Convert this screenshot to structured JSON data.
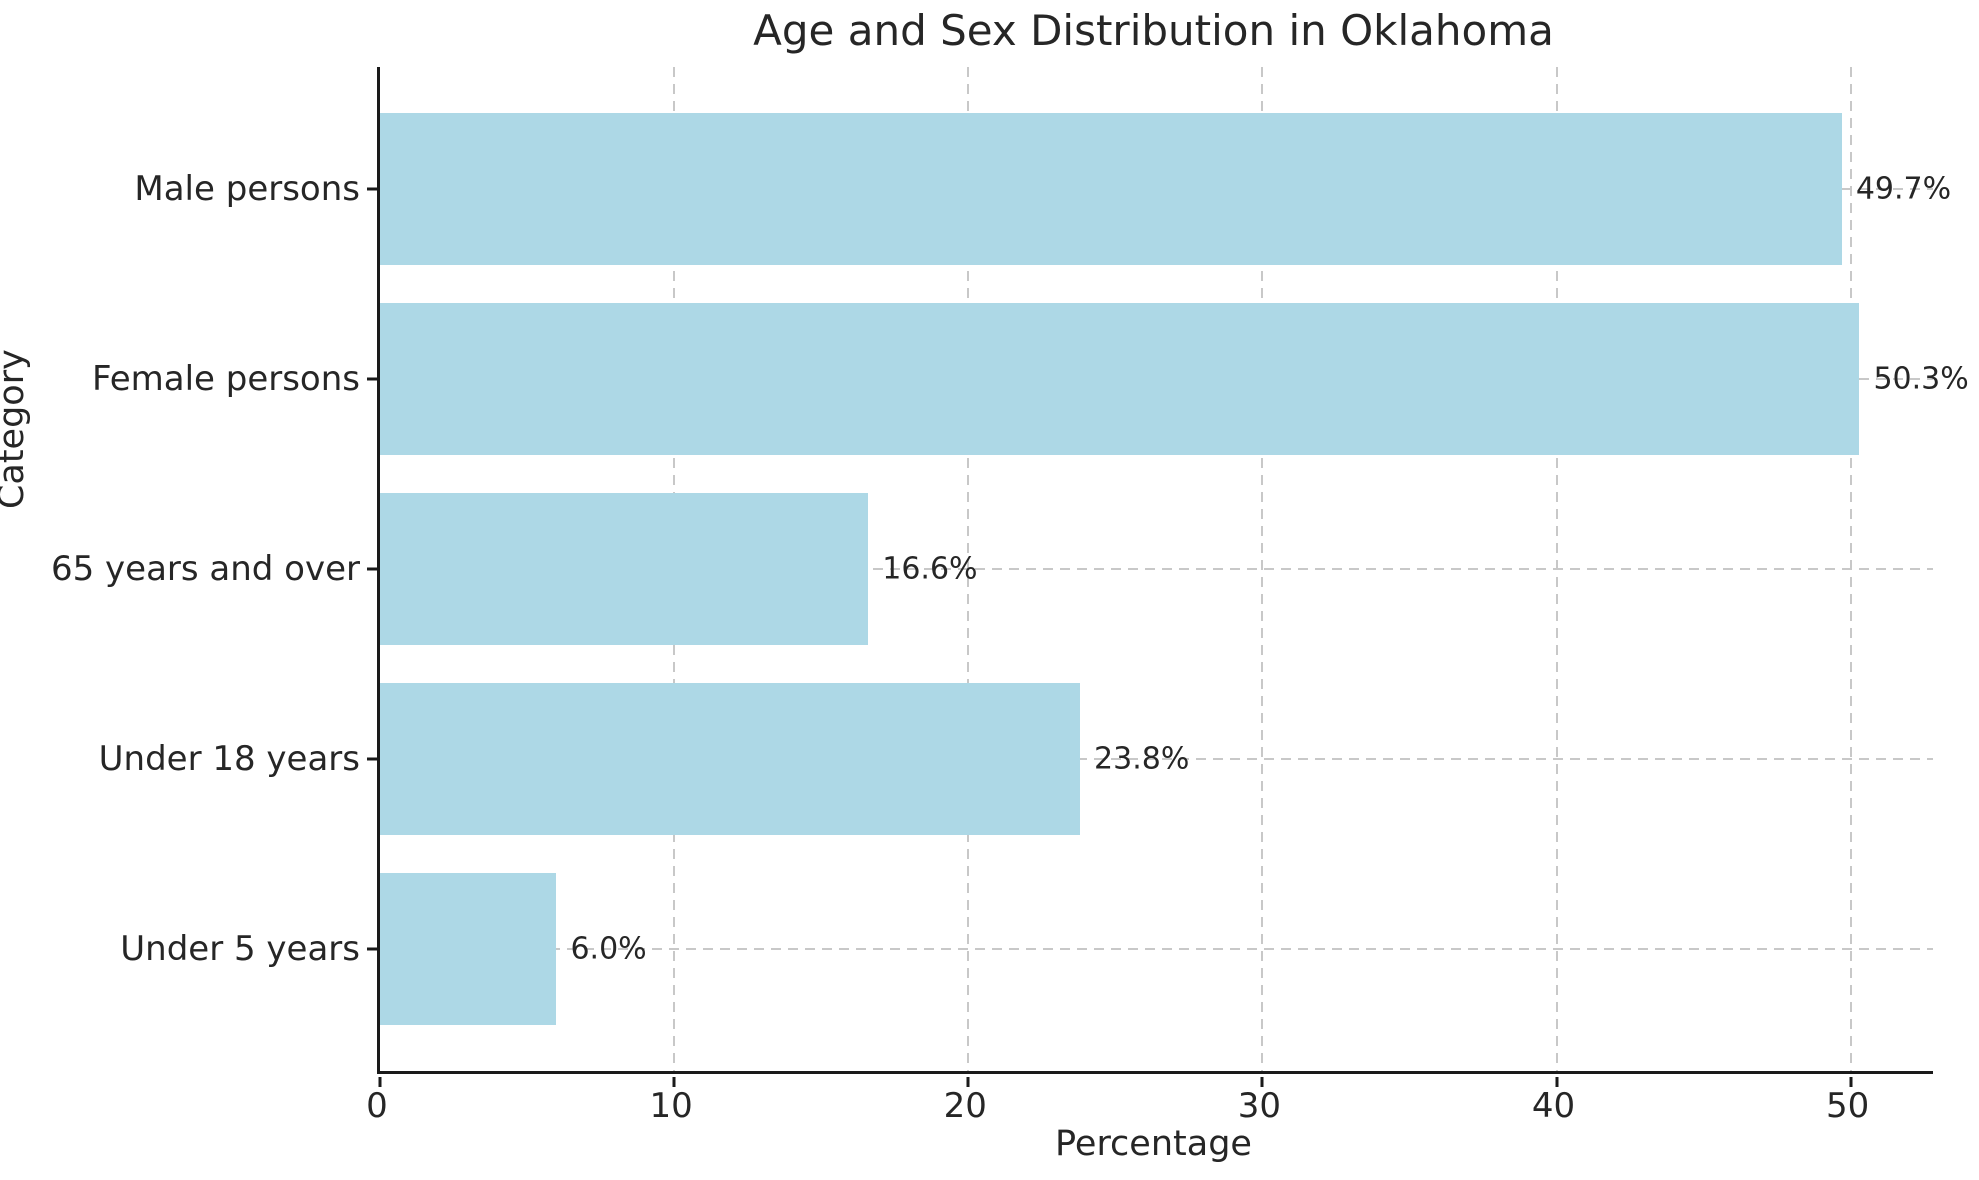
{
  "chart_data": {
    "type": "bar",
    "orientation": "horizontal",
    "title": "Age and Sex Distribution in Oklahoma",
    "xlabel": "Percentage",
    "ylabel": "Category",
    "categories": [
      "Male persons",
      "Female persons",
      "65 years and over",
      "Under 18 years",
      "Under 5 years"
    ],
    "values": [
      49.7,
      50.3,
      16.6,
      23.8,
      6.0
    ],
    "value_labels": [
      "49.7%",
      "50.3%",
      "16.6%",
      "23.8%",
      "6.0%"
    ],
    "xticks": [
      0,
      10,
      20,
      30,
      40,
      50
    ],
    "xlim": [
      0,
      52.8
    ],
    "grid": true,
    "legend": "none",
    "bar_color": "#ADD8E6",
    "grid_color": "#c8c8c8",
    "text_color": "#262626",
    "spine_color": "#1a1a1a"
  }
}
